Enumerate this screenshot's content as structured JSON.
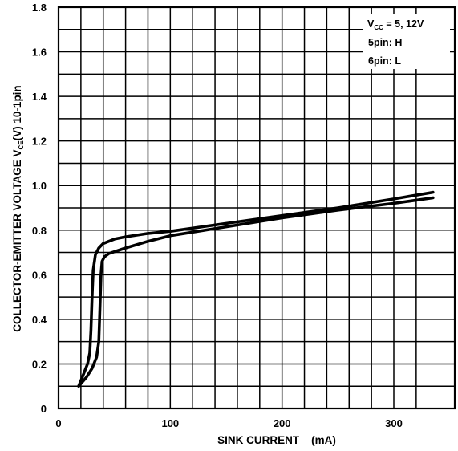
{
  "chart_data": {
    "type": "line",
    "title": "",
    "xlabel": "SINK CURRENT    (mA)",
    "ylabel": {
      "main": "COLLECTOR-EMITTER VOLTAGE  V",
      "sub": "CE",
      "tail": "(V) 10-1pin"
    },
    "xlim": [
      0,
      340
    ],
    "ylim": [
      0,
      1.8
    ],
    "x_ticks": [
      0,
      100,
      200,
      300
    ],
    "x_tick_labels": [
      "0",
      "100",
      "200",
      "300"
    ],
    "y_ticks": [
      0,
      0.2,
      0.4,
      0.6,
      0.8,
      1.0,
      1.2,
      1.4,
      1.6,
      1.8
    ],
    "y_tick_labels": [
      "0",
      "0.2",
      "0.4",
      "0.6",
      "0.8",
      "1.0",
      "1.2",
      "1.4",
      "1.6",
      "1.8"
    ],
    "grid": true,
    "annotation": {
      "line1_main": "V",
      "line1_sub": "CC",
      "line1_tail": " = 5, 12V",
      "line2": "5pin: H",
      "line3": "6pin: L"
    },
    "series": [
      {
        "x": [
          18,
          22,
          26,
          28,
          29,
          30,
          31,
          33,
          36,
          40,
          50,
          60,
          80,
          100,
          150,
          200,
          250,
          300,
          335
        ],
        "y": [
          0.1,
          0.15,
          0.2,
          0.25,
          0.35,
          0.5,
          0.62,
          0.69,
          0.72,
          0.74,
          0.76,
          0.77,
          0.785,
          0.795,
          0.83,
          0.865,
          0.9,
          0.94,
          0.97
        ]
      },
      {
        "x": [
          18,
          25,
          30,
          34,
          36,
          37,
          38,
          39,
          41,
          45,
          60,
          80,
          100,
          150,
          200,
          250,
          300,
          335
        ],
        "y": [
          0.1,
          0.14,
          0.18,
          0.23,
          0.3,
          0.45,
          0.6,
          0.66,
          0.68,
          0.695,
          0.72,
          0.75,
          0.775,
          0.815,
          0.855,
          0.89,
          0.92,
          0.945
        ]
      }
    ]
  }
}
